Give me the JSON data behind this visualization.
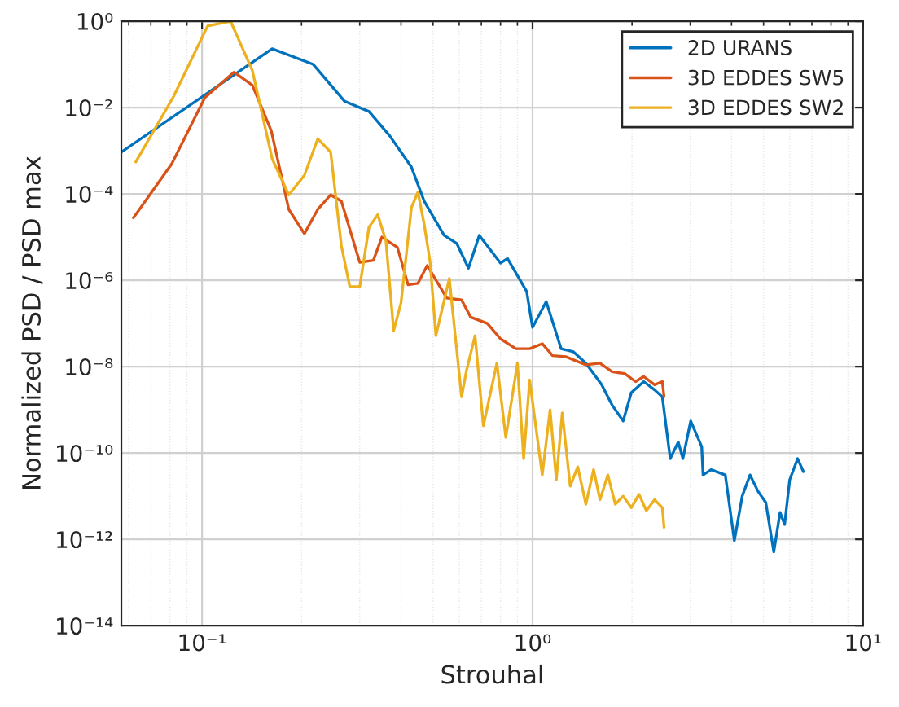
{
  "chart_data": {
    "type": "line",
    "xlabel": "Strouhal",
    "ylabel": "Normalized PSD / PSD max",
    "log": "xy",
    "grid": true,
    "legend": "top right",
    "line_style": "solid",
    "marker": "none",
    "xlim": [
      0.057,
      10
    ],
    "xticks": [
      {
        "value": 0.1,
        "label": "10⁻¹"
      },
      {
        "value": 1,
        "label": "10⁰"
      },
      {
        "value": 10,
        "label": "10¹"
      }
    ],
    "ylim": [
      1e-14,
      1
    ],
    "yticks": [
      {
        "value": 1e-14,
        "label": "10⁻¹⁴"
      },
      {
        "value": 1e-12,
        "label": "10⁻¹²"
      },
      {
        "value": 1e-10,
        "label": "10⁻¹⁰"
      },
      {
        "value": 1e-08,
        "label": "10⁻⁸"
      },
      {
        "value": 1e-06,
        "label": "10⁻⁶"
      },
      {
        "value": 0.0001,
        "label": "10⁻⁴"
      },
      {
        "value": 0.01,
        "label": "10⁻²"
      },
      {
        "value": 1,
        "label": "10⁰"
      }
    ],
    "series": [
      {
        "name": "2D URANS",
        "color": "#0072bd",
        "x": [
          0.057,
          0.163,
          0.217,
          0.27,
          0.32,
          0.37,
          0.43,
          0.47,
          0.54,
          0.59,
          0.64,
          0.69,
          0.8,
          0.84,
          0.96,
          1.0,
          1.1,
          1.22,
          1.33,
          1.45,
          1.53,
          1.62,
          1.69,
          1.74,
          1.88,
          1.99,
          2.17,
          2.34,
          2.47,
          2.61,
          2.76,
          2.85,
          3.01,
          3.25,
          3.28,
          3.47,
          3.83,
          4.08,
          4.31,
          4.55,
          4.81,
          5.08,
          5.37,
          5.61,
          5.79,
          6.0,
          6.34,
          6.6
        ],
        "values": [
          0.00093,
          0.23,
          0.1,
          0.014,
          0.0081,
          0.0022,
          0.00042,
          6.8e-05,
          1.1e-05,
          7.1e-06,
          1.9e-06,
          1.1e-05,
          2.5e-06,
          3.2e-06,
          5.5e-07,
          8.1e-08,
          3.2e-07,
          2.6e-08,
          2.2e-08,
          1.2e-08,
          6.9e-09,
          3.8e-09,
          2e-09,
          1.3e-09,
          5.5e-10,
          2.5e-09,
          4.5e-09,
          2.9e-09,
          2e-09,
          7.4e-11,
          1.8e-10,
          7.4e-11,
          5.5e-10,
          1.4e-10,
          3.1e-11,
          4.1e-11,
          3.1e-11,
          9.3e-13,
          1e-11,
          3.1e-11,
          1.3e-11,
          7.1e-12,
          5.1e-13,
          4.2e-12,
          2.2e-12,
          2.4e-11,
          7.4e-11,
          3.7e-11
        ]
      },
      {
        "name": "3D EDDES SW5",
        "color": "#d95319",
        "x": [
          0.062,
          0.081,
          0.102,
          0.125,
          0.142,
          0.162,
          0.183,
          0.204,
          0.224,
          0.245,
          0.264,
          0.3,
          0.33,
          0.35,
          0.39,
          0.42,
          0.45,
          0.48,
          0.55,
          0.61,
          0.65,
          0.73,
          0.8,
          0.89,
          0.98,
          1.07,
          1.15,
          1.26,
          1.45,
          1.6,
          1.74,
          1.9,
          2.05,
          2.17,
          2.34,
          2.47,
          2.5
        ],
        "values": [
          2.8e-05,
          0.0005,
          0.017,
          0.066,
          0.033,
          0.0029,
          4.4e-05,
          1.2e-05,
          4.4e-05,
          9.5e-05,
          6.8e-05,
          2.6e-06,
          2.9e-06,
          1e-05,
          5.8e-06,
          7.9e-07,
          8.5e-07,
          2.2e-06,
          3.9e-07,
          3.5e-07,
          1.4e-07,
          1e-07,
          4.4e-08,
          2.6e-08,
          2.6e-08,
          3.4e-08,
          1.8e-08,
          1.7e-08,
          1.1e-08,
          1.2e-08,
          7.6e-09,
          6.9e-09,
          4.5e-09,
          5.9e-09,
          3.8e-09,
          4.5e-09,
          2e-09
        ]
      },
      {
        "name": "3D EDDES SW2",
        "color": "#edb120",
        "x": [
          0.063,
          0.082,
          0.104,
          0.122,
          0.142,
          0.163,
          0.183,
          0.204,
          0.224,
          0.245,
          0.264,
          0.28,
          0.3,
          0.32,
          0.34,
          0.36,
          0.38,
          0.4,
          0.43,
          0.45,
          0.47,
          0.49,
          0.51,
          0.56,
          0.61,
          0.63,
          0.67,
          0.71,
          0.78,
          0.83,
          0.9,
          0.94,
          0.98,
          1.07,
          1.13,
          1.18,
          1.23,
          1.3,
          1.37,
          1.45,
          1.53,
          1.6,
          1.69,
          1.78,
          1.88,
          1.99,
          2.1,
          2.21,
          2.34,
          2.47,
          2.5
        ],
        "values": [
          0.00055,
          0.018,
          0.78,
          1,
          0.072,
          0.00065,
          9.5e-05,
          0.00027,
          0.0019,
          0.00093,
          6.3e-06,
          7.1e-07,
          7.1e-07,
          1.7e-05,
          3.3e-05,
          8.3e-06,
          6.8e-08,
          3e-07,
          4.8e-05,
          0.00011,
          2e-05,
          2.6e-06,
          5.2e-08,
          1.1e-06,
          2e-09,
          7.6e-09,
          5.2e-08,
          4.3e-10,
          1.2e-08,
          2.3e-10,
          1.2e-08,
          7.4e-11,
          4.9e-09,
          3.1e-11,
          1e-09,
          2.4e-11,
          8.5e-10,
          1.7e-11,
          4.8e-11,
          6.5e-12,
          4.1e-11,
          8.3e-12,
          3.1e-11,
          6.5e-12,
          1e-11,
          5.4e-12,
          1.1e-11,
          4.6e-12,
          8.3e-12,
          5.4e-12,
          1.9e-12
        ]
      }
    ]
  }
}
